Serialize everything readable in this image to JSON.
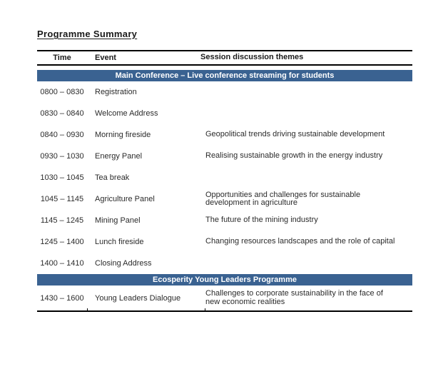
{
  "page": {
    "title": "Programme Summary"
  },
  "colors": {
    "banner_blue": "#3A6291",
    "rule_black": "#000000"
  },
  "table": {
    "columns": {
      "time": "Time",
      "event": "Event",
      "themes": "Session discussion themes"
    },
    "sections": [
      {
        "banner": "Main Conference – Live conference streaming for students",
        "rows": [
          {
            "time": "0800 – 0830",
            "event": "Registration",
            "theme": ""
          },
          {
            "time": "0830 – 0840",
            "event": "Welcome Address",
            "theme": ""
          },
          {
            "time": "0840 – 0930",
            "event": "Morning fireside",
            "theme": "Geopolitical trends driving sustainable development"
          },
          {
            "time": "0930 – 1030",
            "event": "Energy Panel",
            "theme": "Realising sustainable growth in the energy industry"
          },
          {
            "time": "1030 – 1045",
            "event": "Tea break",
            "theme": ""
          },
          {
            "time": "1045 – 1145",
            "event": "Agriculture Panel",
            "theme": "Opportunities and challenges for sustainable\ndevelopment in agriculture"
          },
          {
            "time": "1145 – 1245",
            "event": "Mining Panel",
            "theme": "The future of the mining industry"
          },
          {
            "time": "1245 – 1400",
            "event": "Lunch fireside",
            "theme": "Changing resources landscapes and the role of capital"
          },
          {
            "time": "1400 – 1410",
            "event": "Closing Address",
            "theme": ""
          }
        ]
      },
      {
        "banner": "Ecosperity Young Leaders Programme",
        "rows": [
          {
            "time": "1430 – 1600",
            "event": "Young Leaders Dialogue",
            "theme": "Challenges to corporate sustainability in the face of\nnew economic realities",
            "tall": true
          }
        ]
      }
    ]
  }
}
